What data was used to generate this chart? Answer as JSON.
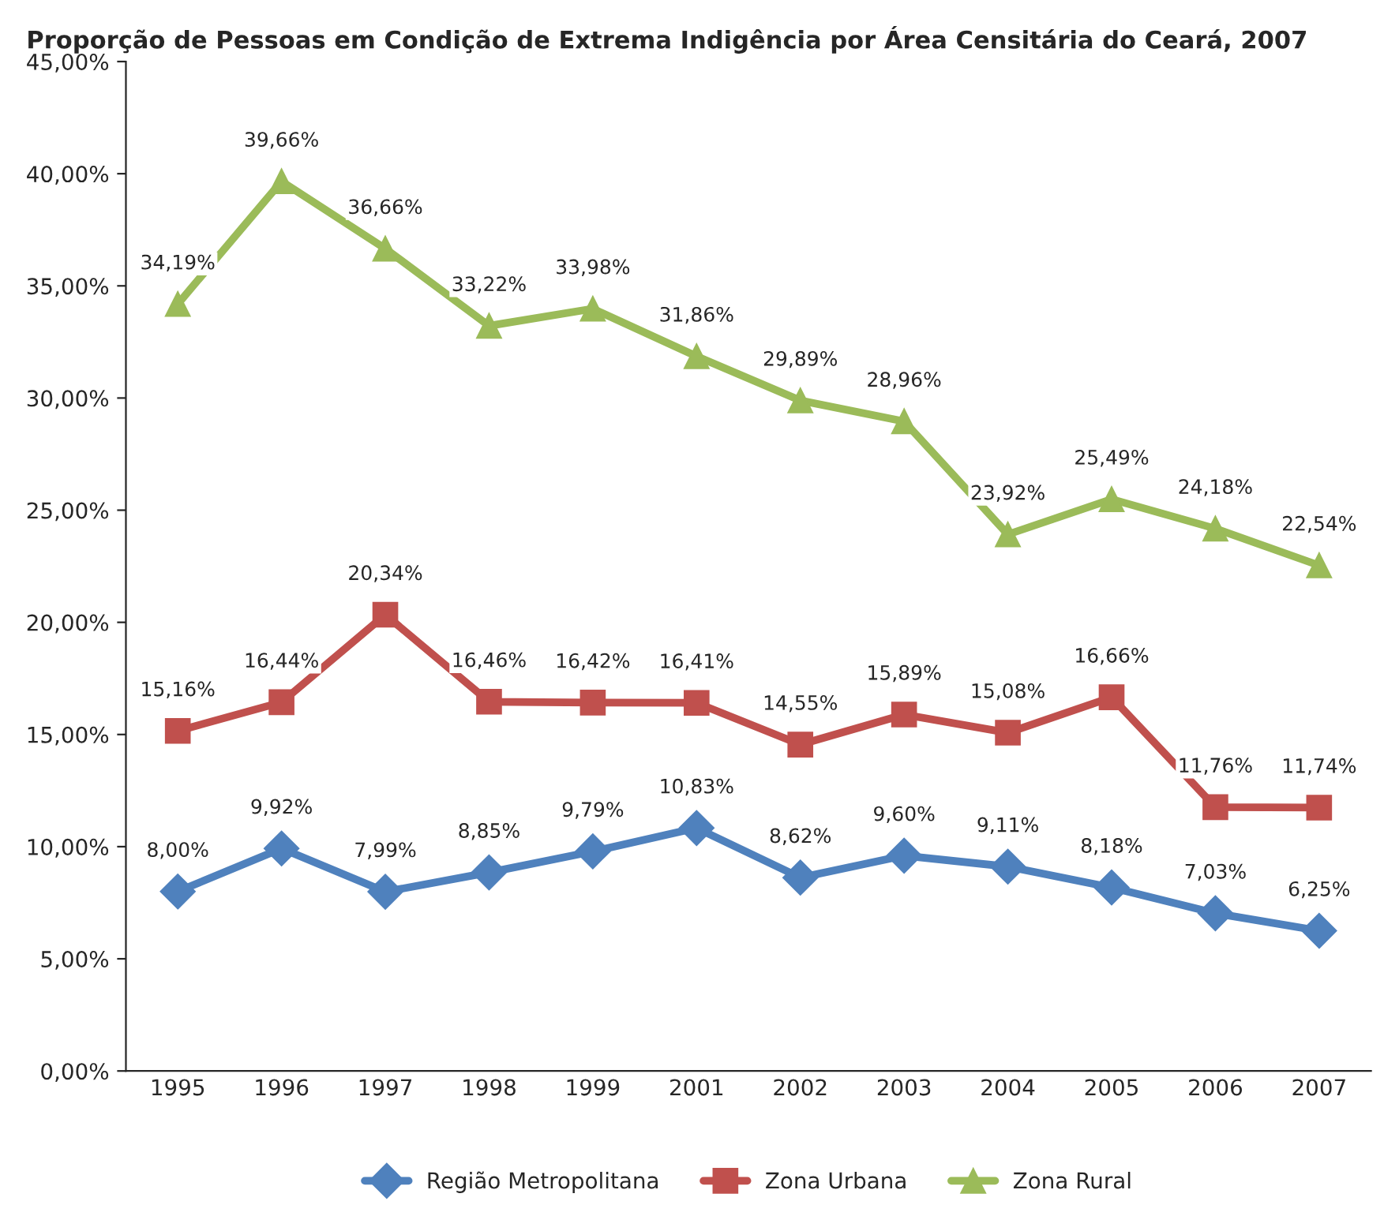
{
  "chart_data": {
    "type": "line",
    "title": "Proporção de Pessoas em Condição de Extrema Indigência por Área Censitária do Ceará, 2007",
    "categories": [
      "1995",
      "1996",
      "1997",
      "1998",
      "1999",
      "2001",
      "2002",
      "2003",
      "2004",
      "2005",
      "2006",
      "2007"
    ],
    "series": [
      {
        "name": "Região Metropolitana",
        "color": "#4f81bd",
        "marker": "diamond",
        "values": [
          8.0,
          9.92,
          7.99,
          8.85,
          9.79,
          10.83,
          8.62,
          9.6,
          9.11,
          8.18,
          7.03,
          6.25
        ],
        "value_labels": [
          "8,00%",
          "9,92%",
          "7,99%",
          "8,85%",
          "9,79%",
          "10,83%",
          "8,62%",
          "9,60%",
          "9,11%",
          "8,18%",
          "7,03%",
          "6,25%"
        ]
      },
      {
        "name": "Zona Urbana",
        "color": "#c0504d",
        "marker": "square",
        "values": [
          15.16,
          16.44,
          20.34,
          16.46,
          16.42,
          16.41,
          14.55,
          15.89,
          15.08,
          16.66,
          11.76,
          11.74
        ],
        "value_labels": [
          "15,16%",
          "16,44%",
          "20,34%",
          "16,46%",
          "16,42%",
          "16,41%",
          "14,55%",
          "15,89%",
          "15,08%",
          "16,66%",
          "11,76%",
          "11,74%"
        ]
      },
      {
        "name": "Zona Rural",
        "color": "#9bbb59",
        "marker": "triangle",
        "values": [
          34.19,
          39.66,
          36.66,
          33.22,
          33.98,
          31.86,
          29.89,
          28.96,
          23.92,
          25.49,
          24.18,
          22.54
        ],
        "value_labels": [
          "34,19%",
          "39,66%",
          "36,66%",
          "33,22%",
          "33,98%",
          "31,86%",
          "29,89%",
          "28,96%",
          "23,92%",
          "25,49%",
          "24,18%",
          "22,54%"
        ]
      }
    ],
    "ylim": [
      0,
      45
    ],
    "yticks": [
      {
        "value": 0,
        "label": "0,00%"
      },
      {
        "value": 5,
        "label": "5,00%"
      },
      {
        "value": 10,
        "label": "10,00%"
      },
      {
        "value": 15,
        "label": "15,00%"
      },
      {
        "value": 20,
        "label": "20,00%"
      },
      {
        "value": 25,
        "label": "25,00%"
      },
      {
        "value": 30,
        "label": "30,00%"
      },
      {
        "value": 35,
        "label": "35,00%"
      },
      {
        "value": 40,
        "label": "40,00%"
      },
      {
        "value": 45,
        "label": "45,00%"
      }
    ],
    "line_style": "solid",
    "legend": "bottom",
    "grid": false
  }
}
